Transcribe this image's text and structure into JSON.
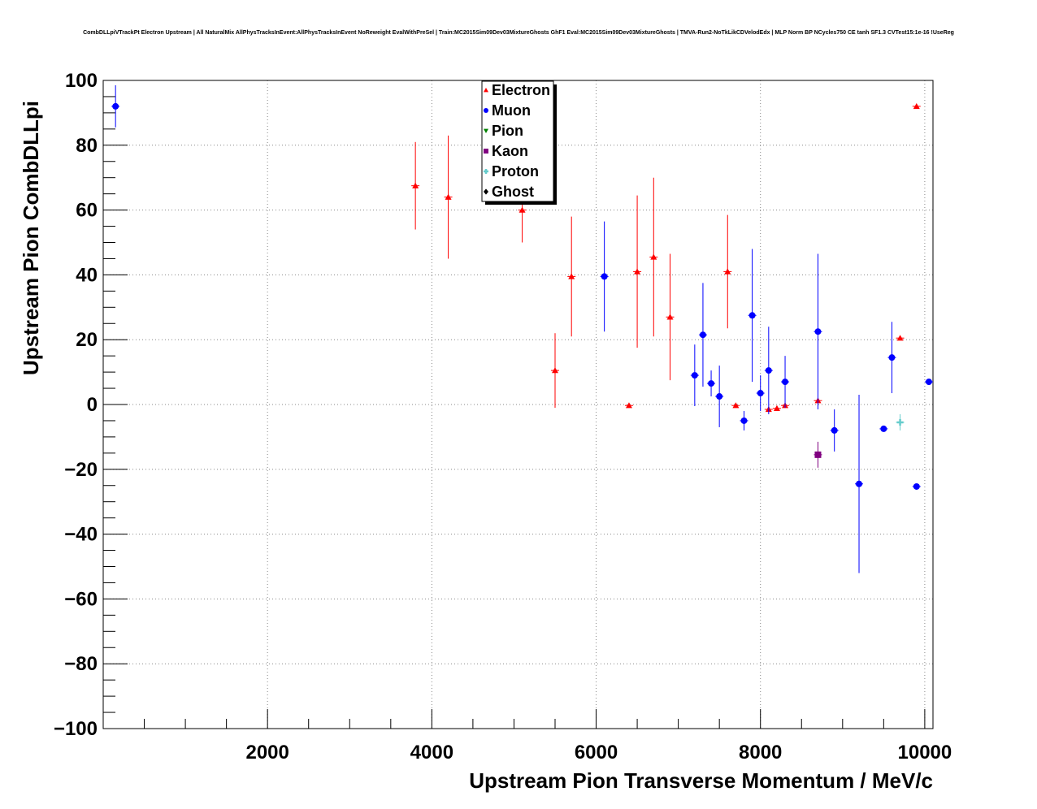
{
  "chart_data": {
    "type": "scatter",
    "title": "CombDLLpiVTrackPt Electron Upstream | All NaturalMix AllPhysTracksInEvent:AllPhysTracksInEvent NoReweight EvalWithPreSel | Train:MC2015Sim09Dev03MixtureGhosts GhF1 Eval:MC2015Sim09Dev03MixtureGhosts | TMVA-Run2-NoTkLikCDVelodEdx | MLP Norm BP NCycles750 CE tanh SF1.3 CVTest15:1e-16 !UseReg",
    "xlabel": "Upstream Pion Transverse Momentum / MeV/c",
    "ylabel": "Upstream Pion CombDLLpi",
    "xlim": [
      0,
      10100
    ],
    "ylim": [
      -100,
      100
    ],
    "x_ticks": [
      {
        "v": 2000,
        "label": "2000"
      },
      {
        "v": 4000,
        "label": "4000"
      },
      {
        "v": 6000,
        "label": "6000"
      },
      {
        "v": 8000,
        "label": "8000"
      },
      {
        "v": 10000,
        "label": "10000"
      }
    ],
    "y_ticks": [
      {
        "v": 100,
        "label": "100"
      },
      {
        "v": 80,
        "label": "80"
      },
      {
        "v": 60,
        "label": "60"
      },
      {
        "v": 40,
        "label": "40"
      },
      {
        "v": 20,
        "label": "20"
      },
      {
        "v": 0,
        "label": "0"
      },
      {
        "v": -20,
        "label": "−20"
      },
      {
        "v": -40,
        "label": "−40"
      },
      {
        "v": -60,
        "label": "−60"
      },
      {
        "v": -80,
        "label": "−80"
      },
      {
        "v": -100,
        "label": "−100"
      }
    ],
    "grid": true,
    "legend_position": "top-center",
    "series": [
      {
        "name": "Electron",
        "color": "#ff0000",
        "marker": "triangle-up",
        "points": [
          {
            "x": 3800,
            "y": 67.5,
            "err": 13.5
          },
          {
            "x": 4200,
            "y": 64,
            "err": 19
          },
          {
            "x": 5100,
            "y": 60,
            "err": 10
          },
          {
            "x": 5500,
            "y": 10.5,
            "err": 11.5
          },
          {
            "x": 5700,
            "y": 39.5,
            "err": 18.5
          },
          {
            "x": 6400,
            "y": -0.3,
            "err": 0
          },
          {
            "x": 6500,
            "y": 41,
            "err": 23.5
          },
          {
            "x": 6700,
            "y": 45.5,
            "err": 24.5
          },
          {
            "x": 6900,
            "y": 27,
            "err": 19.5
          },
          {
            "x": 7600,
            "y": 41,
            "err": 17.5
          },
          {
            "x": 7700,
            "y": -0.3,
            "err": 0
          },
          {
            "x": 8100,
            "y": -1.5,
            "err": 0
          },
          {
            "x": 8200,
            "y": -1.2,
            "err": 0
          },
          {
            "x": 8300,
            "y": -0.3,
            "err": 0
          },
          {
            "x": 8700,
            "y": 1.2,
            "err": 0
          },
          {
            "x": 9700,
            "y": 20.5,
            "err": 0
          },
          {
            "x": 9900,
            "y": 92,
            "err": 0
          }
        ]
      },
      {
        "name": "Muon",
        "color": "#0000ff",
        "marker": "circle",
        "points": [
          {
            "x": 150,
            "y": 92,
            "err": 6.5
          },
          {
            "x": 6100,
            "y": 39.5,
            "err": 17
          },
          {
            "x": 7200,
            "y": 9,
            "err": 9.5
          },
          {
            "x": 7300,
            "y": 21.5,
            "err": 16
          },
          {
            "x": 7400,
            "y": 6.5,
            "err": 4
          },
          {
            "x": 7500,
            "y": 2.5,
            "err": 9.5
          },
          {
            "x": 7800,
            "y": -5,
            "err": 3
          },
          {
            "x": 7900,
            "y": 27.5,
            "err": 20.5
          },
          {
            "x": 8000,
            "y": 3.5,
            "err": 5.5
          },
          {
            "x": 8100,
            "y": 10.5,
            "err": 13.5
          },
          {
            "x": 8300,
            "y": 7,
            "err": 8
          },
          {
            "x": 8700,
            "y": 22.5,
            "err": 24
          },
          {
            "x": 8900,
            "y": -8,
            "err": 6.5
          },
          {
            "x": 9200,
            "y": -24.5,
            "err": 27.5
          },
          {
            "x": 9500,
            "y": -7.5,
            "err": 0
          },
          {
            "x": 9600,
            "y": 14.5,
            "err": 11
          },
          {
            "x": 9900,
            "y": -25.3,
            "err": 0
          },
          {
            "x": 10050,
            "y": 7,
            "err": 0
          }
        ]
      },
      {
        "name": "Pion",
        "color": "#008000",
        "marker": "triangle-down",
        "points": []
      },
      {
        "name": "Kaon",
        "color": "#800080",
        "marker": "square",
        "points": [
          {
            "x": 8700,
            "y": -15.5,
            "err": 4
          }
        ]
      },
      {
        "name": "Proton",
        "color": "#66cccc",
        "marker": "cross",
        "points": [
          {
            "x": 9700,
            "y": -5.5,
            "err": 2.5
          }
        ]
      },
      {
        "name": "Ghost",
        "color": "#000000",
        "marker": "diamond",
        "points": []
      }
    ]
  }
}
